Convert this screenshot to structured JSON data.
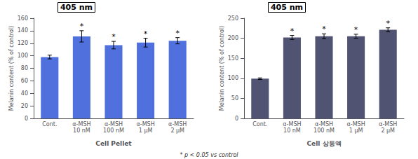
{
  "chart_data": [
    {
      "type": "bar",
      "title": "405 nm",
      "xlabel": "Cell Pellet",
      "ylabel": "Melanin content (% of control)",
      "categories": [
        "Cont.",
        "α-MSH\n10 nM",
        "α-MSH\n100 nM",
        "α-MSH\n1 μM",
        "α-MSH\n2 μM"
      ],
      "values": [
        98,
        131,
        117,
        121,
        124
      ],
      "errors": [
        3,
        9,
        6,
        7,
        5
      ],
      "annotations": [
        {
          "x": "α-MSH\n10 nM",
          "text": "*"
        },
        {
          "x": "α-MSH\n100 nM",
          "text": "*"
        },
        {
          "x": "α-MSH\n1 μM",
          "text": "*"
        },
        {
          "x": "α-MSH\n2 μM",
          "text": "*"
        }
      ],
      "ylim": [
        0,
        160
      ],
      "yticks": [
        0,
        20,
        40,
        60,
        80,
        100,
        120,
        140,
        160
      ],
      "grid": false
    },
    {
      "type": "bar",
      "title": "405 nm",
      "xlabel": "Cell 상등액",
      "ylabel": "Melanin content (% of control)",
      "categories": [
        "Cont.",
        "α-MSH\n10 nM",
        "α-MSH\n100 nM",
        "α-MSH\n1 μM",
        "α-MSH\n2 μM"
      ],
      "values": [
        99,
        202,
        205,
        205,
        221
      ],
      "errors": [
        2,
        5,
        6,
        5,
        5
      ],
      "annotations": [
        {
          "x": "α-MSH\n10 nM",
          "text": "*"
        },
        {
          "x": "α-MSH\n100 nM",
          "text": "*"
        },
        {
          "x": "α-MSH\n1 μM",
          "text": "*"
        },
        {
          "x": "α-MSH\n2 μM",
          "text": "*"
        }
      ],
      "ylim": [
        0,
        250
      ],
      "yticks": [
        0,
        50,
        100,
        150,
        200,
        250
      ],
      "grid": false
    }
  ],
  "footnote": "* p < 0.05 vs control"
}
